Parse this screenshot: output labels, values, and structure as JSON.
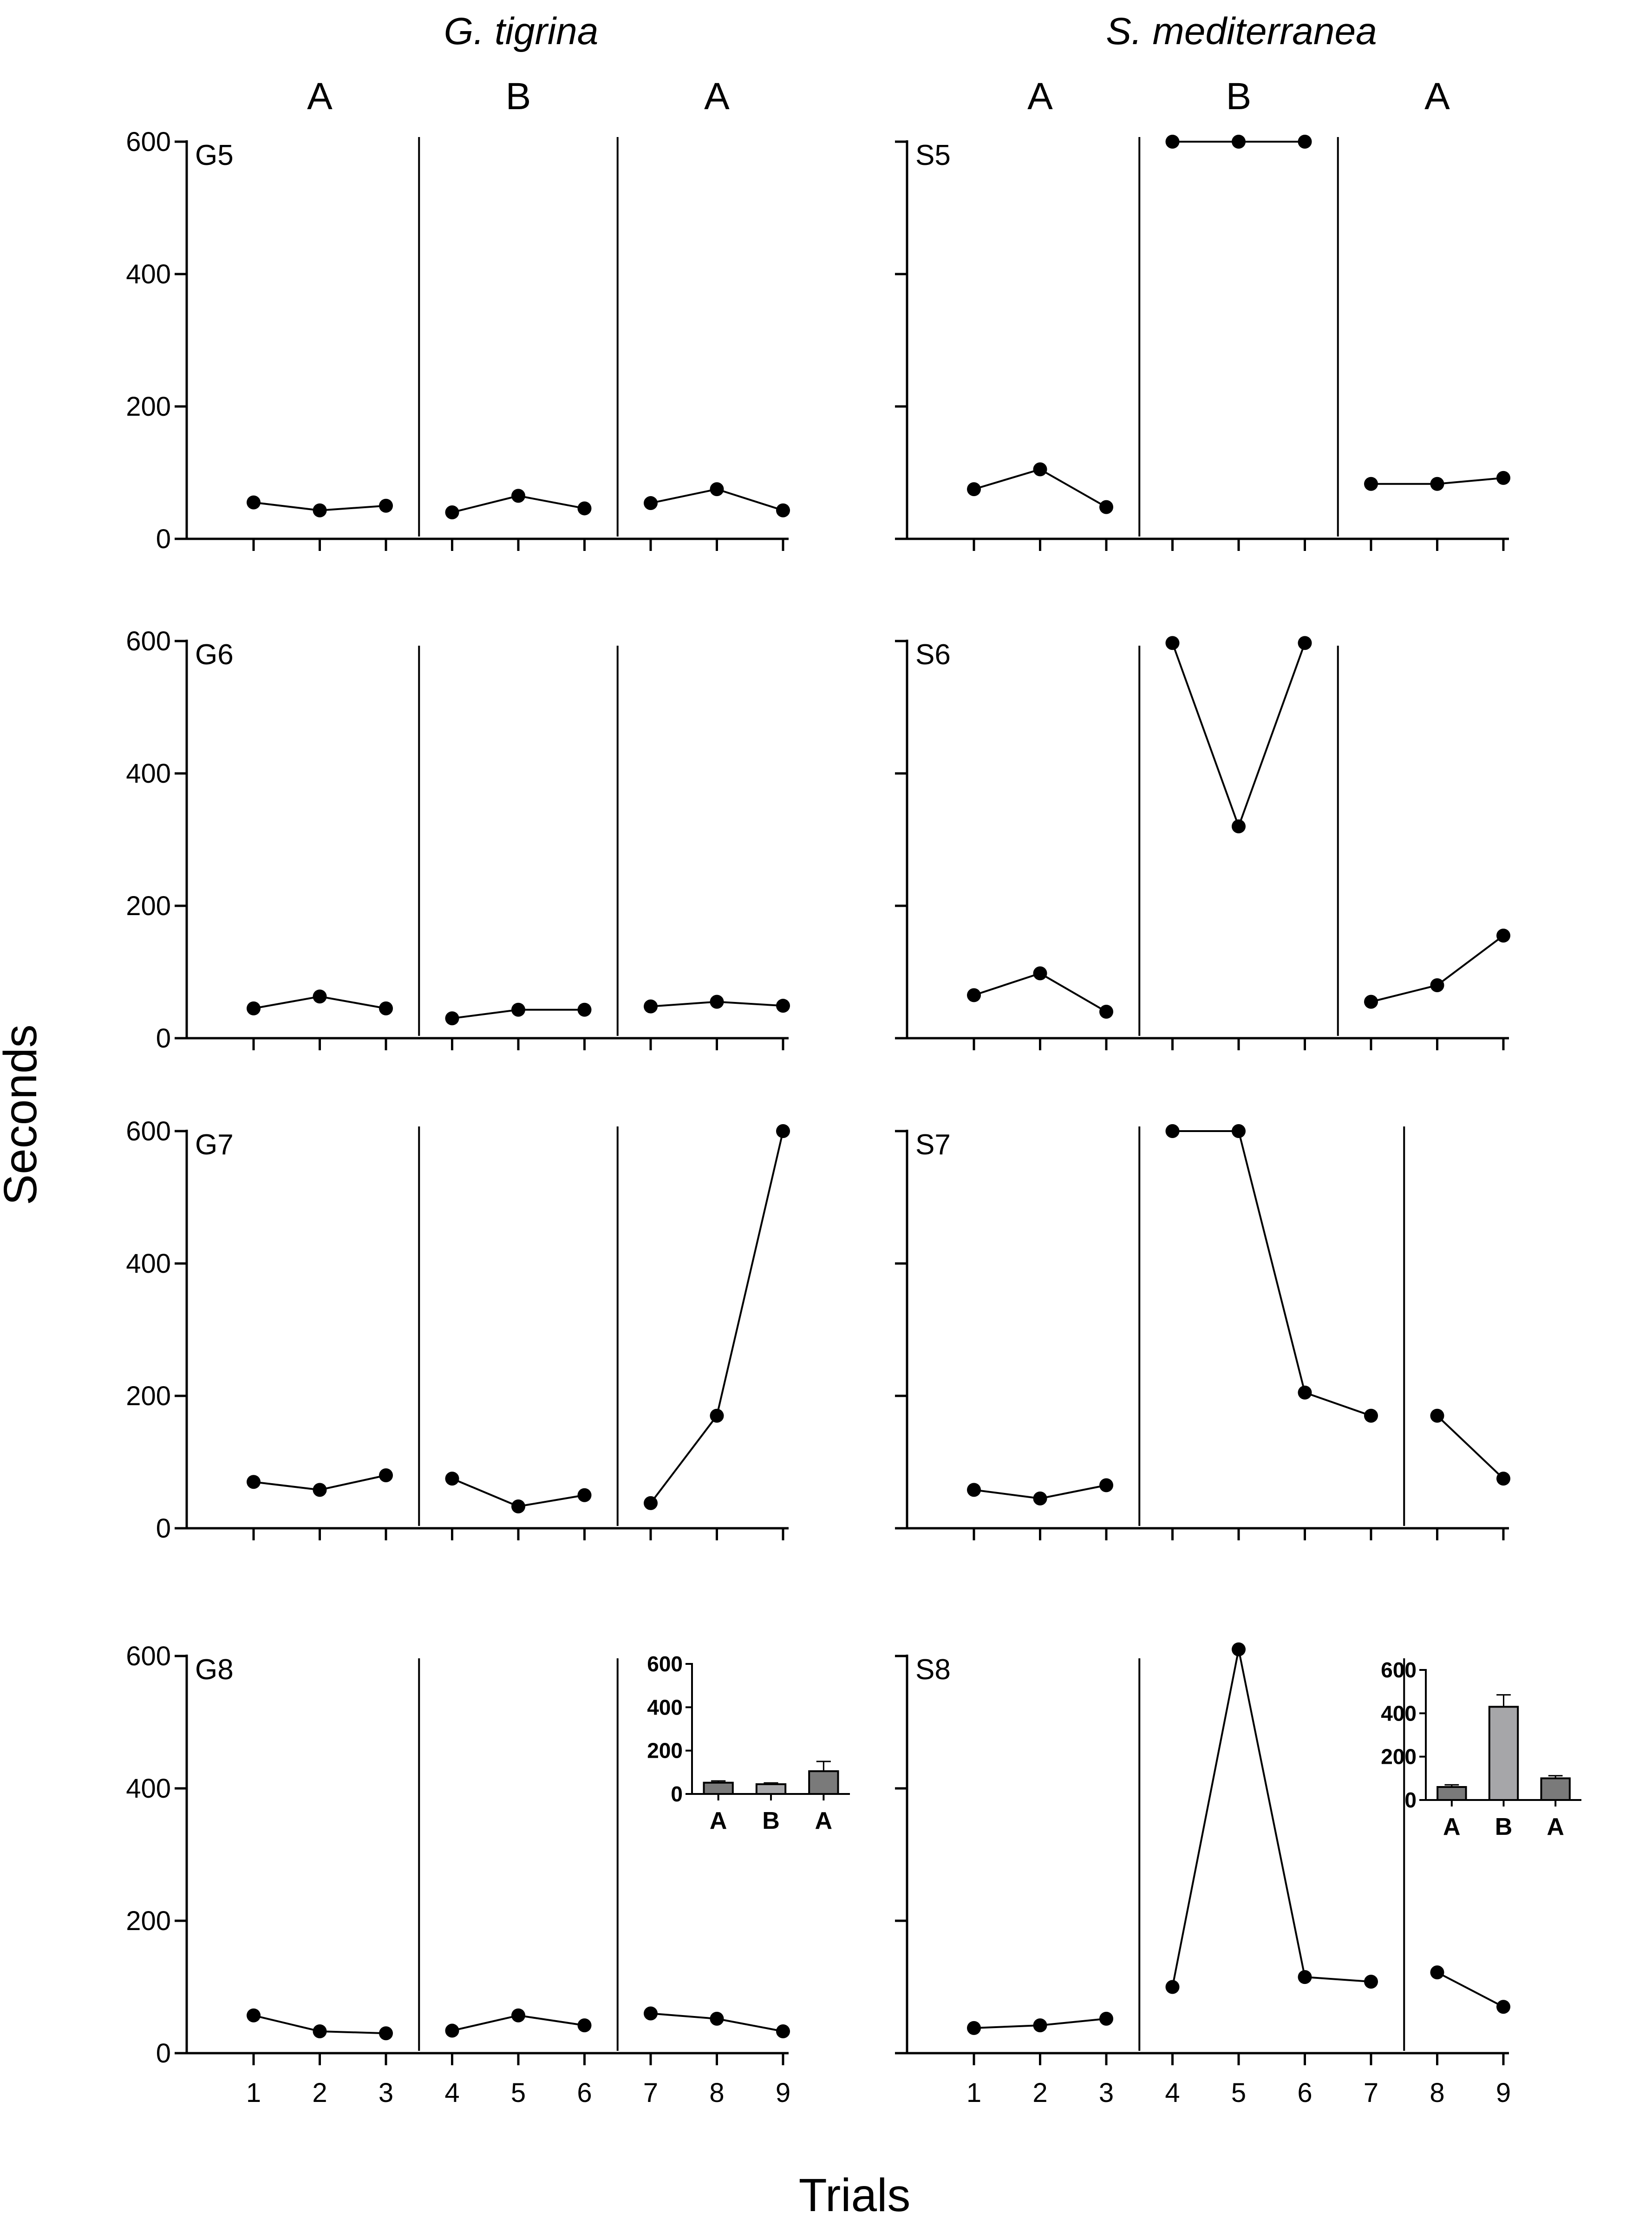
{
  "chart_data": {
    "type": "line",
    "ylabel": "Seconds",
    "xlabel": "Trials",
    "ylim": [
      0,
      600
    ],
    "yticks": [
      0,
      200,
      400,
      600
    ],
    "x": [
      1,
      2,
      3,
      4,
      5,
      6,
      7,
      8,
      9
    ],
    "columns": [
      {
        "species": "G. tigrina",
        "phase_labels": [
          "A",
          "B",
          "A"
        ],
        "panels": [
          {
            "label": "G5",
            "values": [
              55,
              43,
              50,
              40,
              65,
              46,
              54,
              75,
              43
            ],
            "phase_breaks": [
              3.5,
              6.5
            ]
          },
          {
            "label": "G6",
            "values": [
              45,
              63,
              45,
              30,
              43,
              43,
              48,
              55,
              49
            ],
            "phase_breaks": [
              3.5,
              6.5
            ]
          },
          {
            "label": "G7",
            "values": [
              70,
              58,
              80,
              75,
              33,
              50,
              38,
              170,
              600
            ],
            "phase_breaks": [
              3.5,
              6.5
            ]
          },
          {
            "label": "G8",
            "values": [
              57,
              33,
              30,
              34,
              57,
              42,
              60,
              52,
              33
            ],
            "phase_breaks": [
              3.5,
              6.5
            ],
            "inset": {
              "type": "bar",
              "categories": [
                "A",
                "B",
                "A"
              ],
              "values": [
                52,
                45,
                105
              ],
              "errors": [
                8,
                6,
                45
              ],
              "ylim": [
                0,
                600
              ],
              "yticks": [
                0,
                200,
                400,
                600
              ],
              "colors": [
                "#7a7a7a",
                "#a6a6a9",
                "#7a7a7a"
              ]
            }
          }
        ]
      },
      {
        "species": "S. mediterranea",
        "phase_labels": [
          "A",
          "B",
          "A"
        ],
        "panels": [
          {
            "label": "S5",
            "values": [
              75,
              105,
              48,
              600,
              600,
              600,
              83,
              83,
              92
            ],
            "phase_breaks": [
              3.5,
              6.5
            ]
          },
          {
            "label": "S6",
            "values": [
              65,
              98,
              40,
              597,
              320,
              597,
              55,
              80,
              155
            ],
            "phase_breaks": [
              3.5,
              6.5
            ]
          },
          {
            "label": "S7",
            "values": [
              58,
              45,
              65,
              600,
              600,
              205,
              170,
              170,
              75
            ],
            "phase_breaks": [
              3.5,
              7.5
            ]
          },
          {
            "label": "S8",
            "values": [
              38,
              42,
              52,
              100,
              610,
              115,
              108,
              122,
              70
            ],
            "phase_breaks": [
              3.5,
              7.5
            ],
            "inset": {
              "type": "bar",
              "categories": [
                "A",
                "B",
                "A"
              ],
              "values": [
                60,
                430,
                100
              ],
              "errors": [
                10,
                55,
                12
              ],
              "ylim": [
                0,
                600
              ],
              "yticks": [
                0,
                200,
                400,
                600
              ],
              "colors": [
                "#7a7a7a",
                "#a6a6a9",
                "#7a7a7a"
              ]
            }
          }
        ]
      }
    ]
  }
}
